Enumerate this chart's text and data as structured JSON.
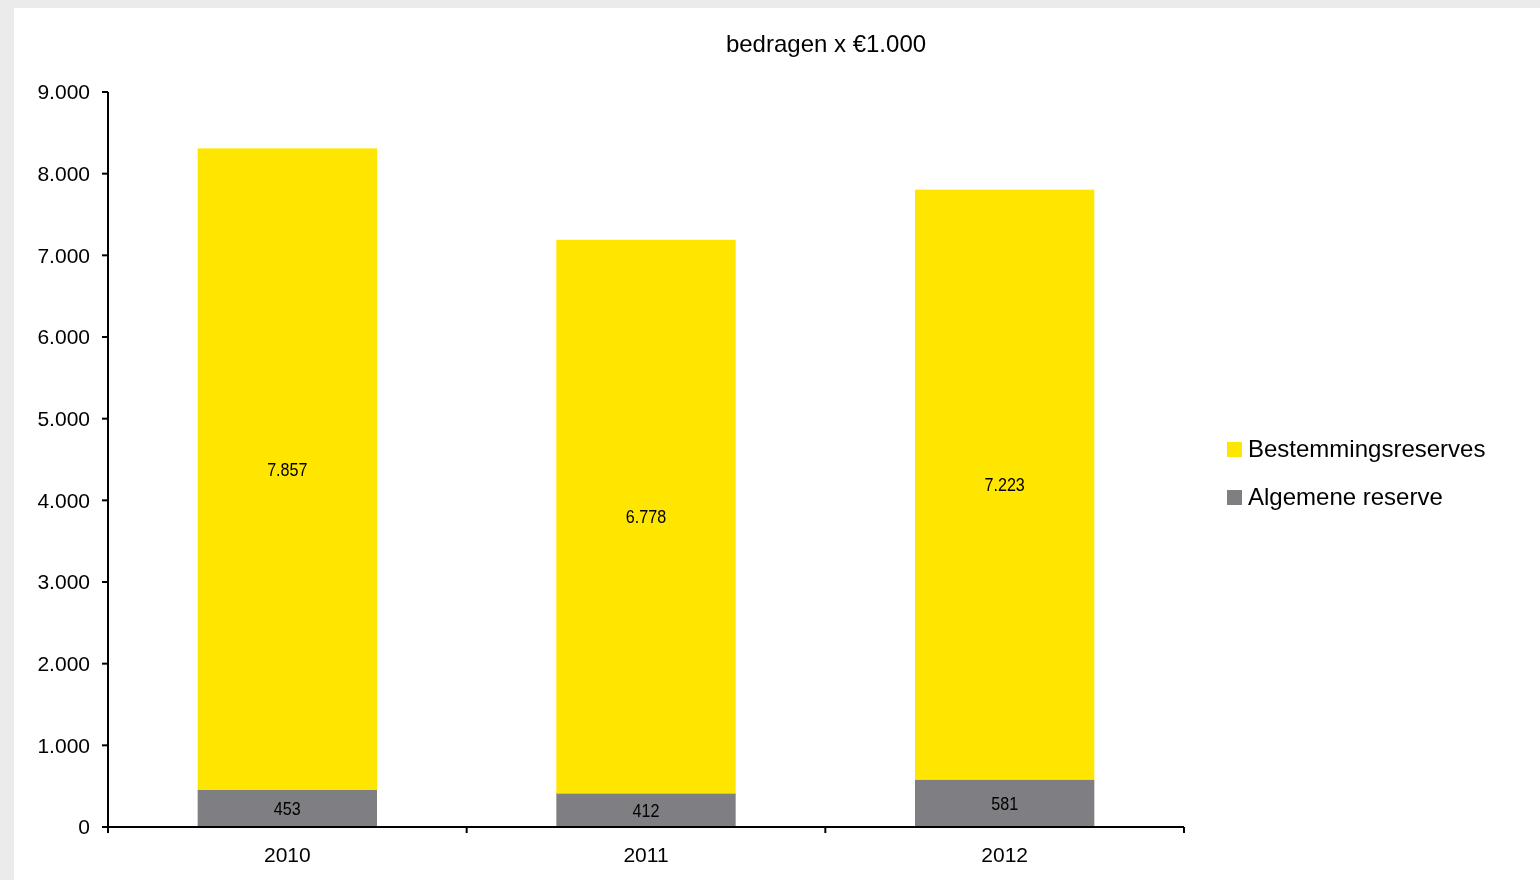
{
  "chart_data": {
    "type": "bar",
    "title": "bedragen x  €1.000",
    "categories": [
      "2010",
      "2011",
      "2012"
    ],
    "stacked": true,
    "series": [
      {
        "name": "Algemene reserve",
        "color": "#7f7e82",
        "values": [
          453,
          412,
          581
        ],
        "value_labels": [
          "453",
          "412",
          "581"
        ]
      },
      {
        "name": "Bestemmingsreserves",
        "color": "#ffe600",
        "values": [
          7857,
          6778,
          7223
        ],
        "value_labels": [
          "7.857",
          "6.778",
          "7.223"
        ]
      }
    ],
    "ylim": [
      0,
      9000
    ],
    "yticks": [
      {
        "value": 0,
        "label": "0"
      },
      {
        "value": 1000,
        "label": "1.000"
      },
      {
        "value": 2000,
        "label": "2.000"
      },
      {
        "value": 3000,
        "label": "3.000"
      },
      {
        "value": 4000,
        "label": "4.000"
      },
      {
        "value": 5000,
        "label": "5.000"
      },
      {
        "value": 6000,
        "label": "6.000"
      },
      {
        "value": 7000,
        "label": "7.000"
      },
      {
        "value": 8000,
        "label": "8.000"
      },
      {
        "value": 9000,
        "label": "9.000"
      }
    ],
    "grid": false,
    "legend": "right"
  }
}
